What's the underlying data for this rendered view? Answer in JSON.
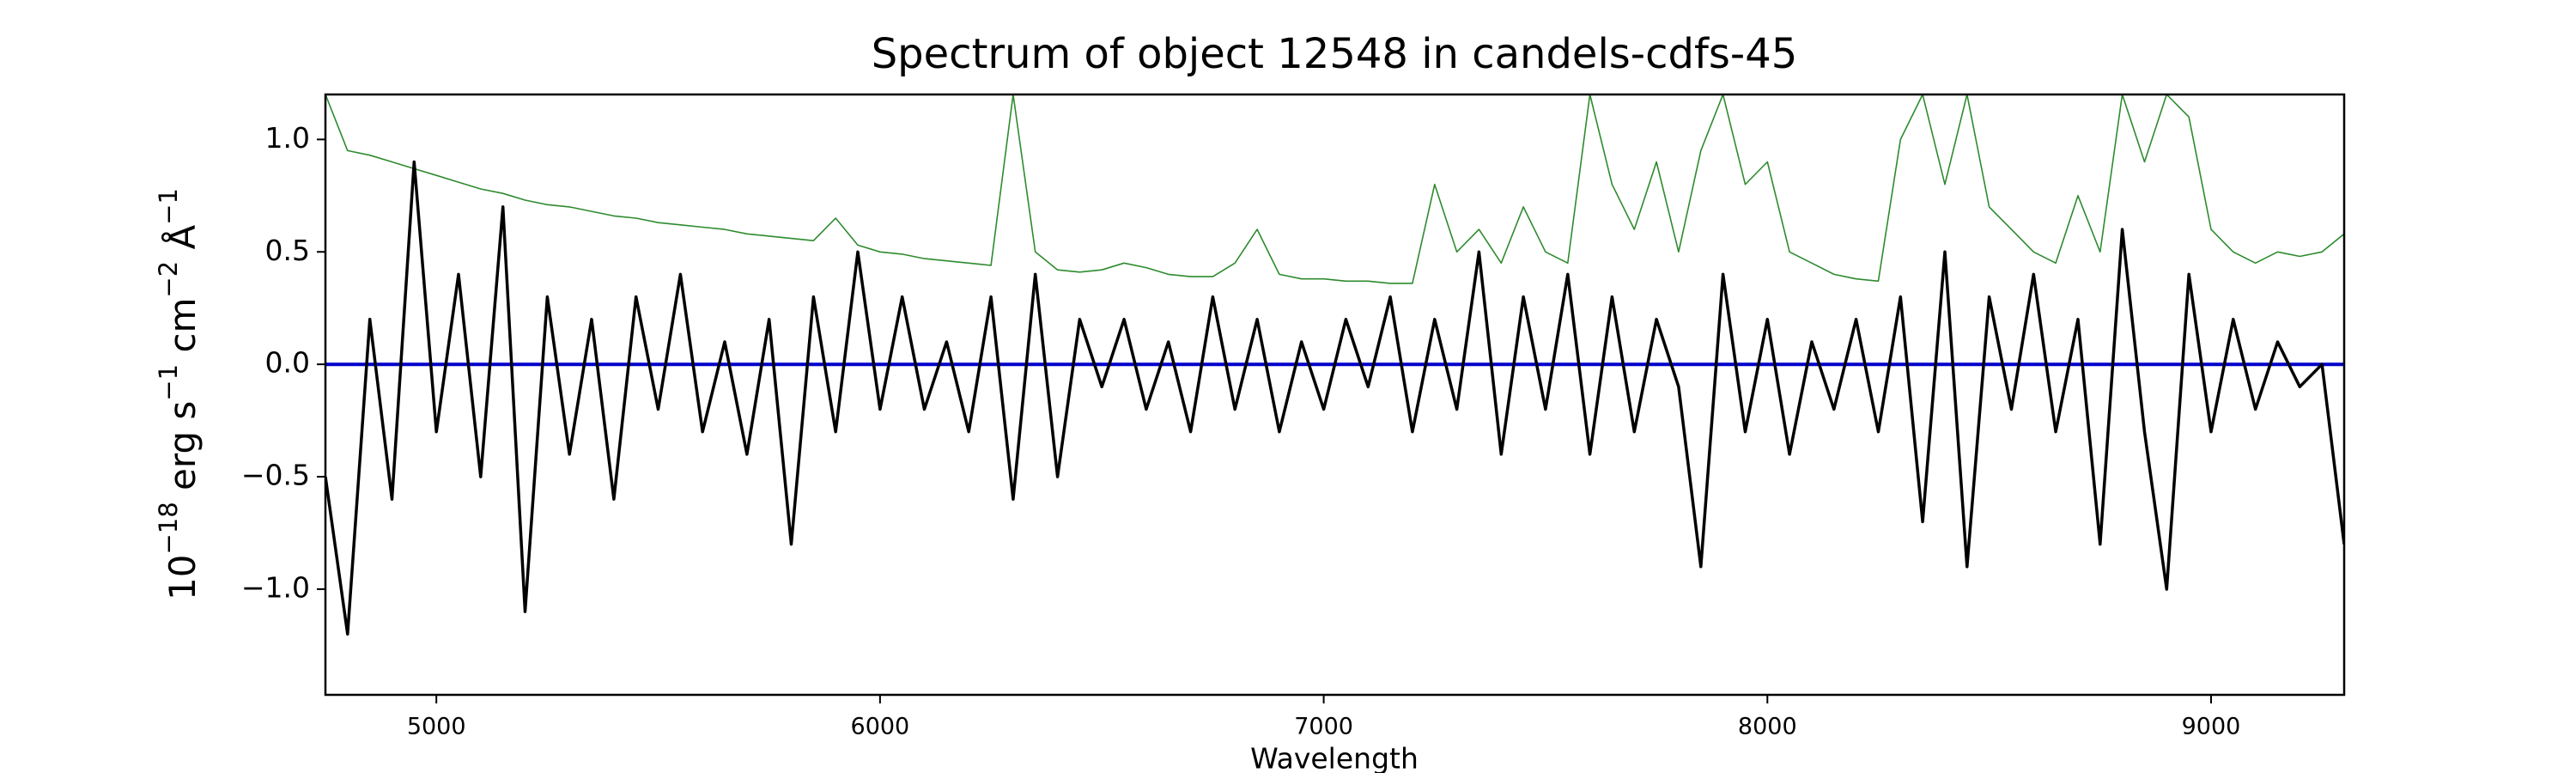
{
  "chart_data": {
    "type": "line",
    "title": "Spectrum of object 12548 in candels-cdfs-45",
    "xlabel": "Wavelength",
    "ylabel": [
      "10",
      "−18",
      " erg s",
      "−1",
      " cm",
      "−2",
      " Å",
      "−1"
    ],
    "xlim": [
      4750,
      9300
    ],
    "ylim": [
      -1.47,
      1.2
    ],
    "xticks": [
      5000,
      6000,
      7000,
      8000,
      9000
    ],
    "yticks": [
      {
        "value": -1.0,
        "label": "−1.0"
      },
      {
        "value": -0.5,
        "label": "−0.5"
      },
      {
        "value": 0,
        "label": "0.0"
      },
      {
        "value": 0.5,
        "label": "0.5"
      },
      {
        "value": 1.0,
        "label": "1.0"
      }
    ],
    "series": [
      {
        "color": "#2e8b2e",
        "width": 1.6,
        "x": [
          4750,
          4800,
          4850,
          4900,
          4950,
          5000,
          5050,
          5100,
          5150,
          5200,
          5250,
          5300,
          5350,
          5400,
          5450,
          5500,
          5550,
          5600,
          5650,
          5700,
          5750,
          5800,
          5850,
          5900,
          5950,
          6000,
          6050,
          6100,
          6150,
          6200,
          6250,
          6300,
          6350,
          6400,
          6450,
          6500,
          6550,
          6600,
          6650,
          6700,
          6750,
          6800,
          6850,
          6900,
          6950,
          7000,
          7050,
          7100,
          7150,
          7200,
          7250,
          7300,
          7350,
          7400,
          7450,
          7500,
          7550,
          7600,
          7650,
          7700,
          7750,
          7800,
          7850,
          7900,
          7950,
          8000,
          8050,
          8100,
          8150,
          8200,
          8250,
          8300,
          8350,
          8400,
          8450,
          8500,
          8550,
          8600,
          8650,
          8700,
          8750,
          8800,
          8850,
          8900,
          8950,
          9000,
          9050,
          9100,
          9150,
          9200,
          9250,
          9300
        ],
        "values": [
          1.2,
          0.95,
          0.93,
          0.9,
          0.87,
          0.84,
          0.81,
          0.78,
          0.76,
          0.73,
          0.71,
          0.7,
          0.68,
          0.66,
          0.65,
          0.63,
          0.62,
          0.61,
          0.6,
          0.58,
          0.57,
          0.56,
          0.55,
          0.65,
          0.53,
          0.5,
          0.49,
          0.47,
          0.46,
          0.45,
          0.44,
          1.2,
          0.5,
          0.42,
          0.41,
          0.42,
          0.45,
          0.43,
          0.4,
          0.39,
          0.39,
          0.45,
          0.6,
          0.4,
          0.38,
          0.38,
          0.37,
          0.37,
          0.36,
          0.36,
          0.8,
          0.5,
          0.6,
          0.45,
          0.7,
          0.5,
          0.45,
          1.2,
          0.8,
          0.6,
          0.9,
          0.5,
          0.95,
          1.2,
          0.8,
          0.9,
          0.5,
          0.45,
          0.4,
          0.38,
          0.37,
          1.0,
          1.2,
          0.8,
          1.2,
          0.7,
          0.6,
          0.5,
          0.45,
          0.75,
          0.5,
          1.2,
          0.9,
          1.2,
          1.1,
          0.6,
          0.5,
          0.45,
          0.5,
          0.48,
          0.5,
          0.58
        ]
      },
      {
        "color": "#0000cc",
        "width": 4,
        "x": [
          4750,
          9300
        ],
        "values": [
          0,
          0
        ]
      },
      {
        "color": "#000000",
        "width": 3.5,
        "x": [
          4750,
          4800,
          4850,
          4900,
          4950,
          5000,
          5050,
          5100,
          5150,
          5200,
          5250,
          5300,
          5350,
          5400,
          5450,
          5500,
          5550,
          5600,
          5650,
          5700,
          5750,
          5800,
          5850,
          5900,
          5950,
          6000,
          6050,
          6100,
          6150,
          6200,
          6250,
          6300,
          6350,
          6400,
          6450,
          6500,
          6550,
          6600,
          6650,
          6700,
          6750,
          6800,
          6850,
          6900,
          6950,
          7000,
          7050,
          7100,
          7150,
          7200,
          7250,
          7300,
          7350,
          7400,
          7450,
          7500,
          7550,
          7600,
          7650,
          7700,
          7750,
          7800,
          7850,
          7900,
          7950,
          8000,
          8050,
          8100,
          8150,
          8200,
          8250,
          8300,
          8350,
          8400,
          8450,
          8500,
          8550,
          8600,
          8650,
          8700,
          8750,
          8800,
          8850,
          8900,
          8950,
          9000,
          9050,
          9100,
          9150,
          9200,
          9250,
          9300
        ],
        "values": [
          -0.5,
          -1.2,
          0.2,
          -0.6,
          0.9,
          -0.3,
          0.4,
          -0.5,
          0.7,
          -1.1,
          0.3,
          -0.4,
          0.2,
          -0.6,
          0.3,
          -0.2,
          0.4,
          -0.3,
          0.1,
          -0.4,
          0.2,
          -0.8,
          0.3,
          -0.3,
          0.5,
          -0.2,
          0.3,
          -0.2,
          0.1,
          -0.3,
          0.3,
          -0.6,
          0.4,
          -0.5,
          0.2,
          -0.1,
          0.2,
          -0.2,
          0.1,
          -0.3,
          0.3,
          -0.2,
          0.2,
          -0.3,
          0.1,
          -0.2,
          0.2,
          -0.1,
          0.3,
          -0.3,
          0.2,
          -0.2,
          0.5,
          -0.4,
          0.3,
          -0.2,
          0.4,
          -0.4,
          0.3,
          -0.3,
          0.2,
          -0.1,
          -0.9,
          0.4,
          -0.3,
          0.2,
          -0.4,
          0.1,
          -0.2,
          0.2,
          -0.3,
          0.3,
          -0.7,
          0.5,
          -0.9,
          0.3,
          -0.2,
          0.4,
          -0.3,
          0.2,
          -0.8,
          0.6,
          -0.3,
          -1.0,
          0.4,
          -0.3,
          0.2,
          -0.2,
          0.1,
          -0.1,
          0,
          -0.8
        ]
      }
    ]
  }
}
